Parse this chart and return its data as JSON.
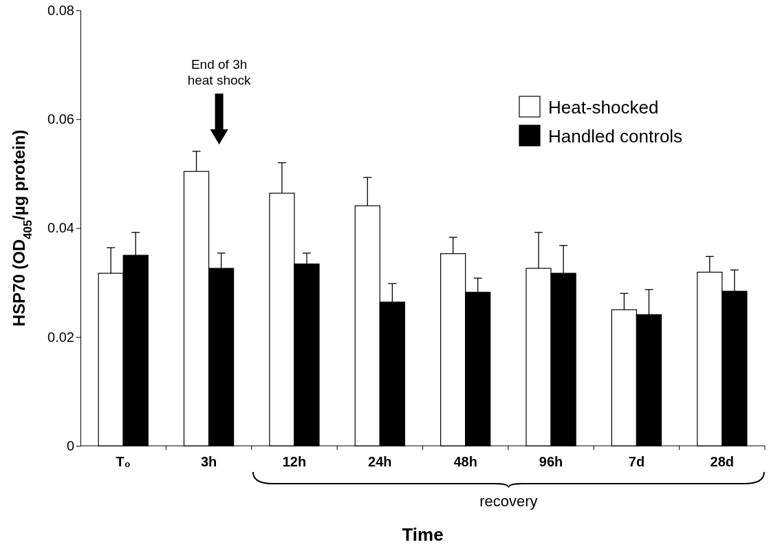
{
  "chart_data": {
    "type": "bar",
    "xlabel": "Time",
    "ylabel": "HSP70 (OD$_{405}$/µg protein)",
    "categories": [
      "T₀",
      "3h",
      "12h",
      "24h",
      "48h",
      "96h",
      "7d",
      "28d"
    ],
    "series": [
      {
        "name": "Heat-shocked",
        "color": "#ffffff",
        "values": [
          0.0317,
          0.0504,
          0.0464,
          0.0441,
          0.0353,
          0.0326,
          0.025,
          0.0319
        ],
        "errors": [
          0.0047,
          0.0037,
          0.0056,
          0.0052,
          0.003,
          0.0066,
          0.003,
          0.0029
        ]
      },
      {
        "name": "Handled controls",
        "color": "#000000",
        "values": [
          0.035,
          0.0326,
          0.0334,
          0.0264,
          0.0282,
          0.0317,
          0.0241,
          0.0284
        ],
        "errors": [
          0.0042,
          0.0028,
          0.002,
          0.0034,
          0.0026,
          0.0051,
          0.0046,
          0.0039
        ]
      }
    ],
    "ylim": [
      0,
      0.08
    ],
    "yticks": [
      0,
      0.02,
      0.04,
      0.06,
      0.08
    ],
    "grid": false,
    "legend": "top right",
    "annotations": [
      "End of 3h\nheat shock",
      "recovery"
    ]
  }
}
